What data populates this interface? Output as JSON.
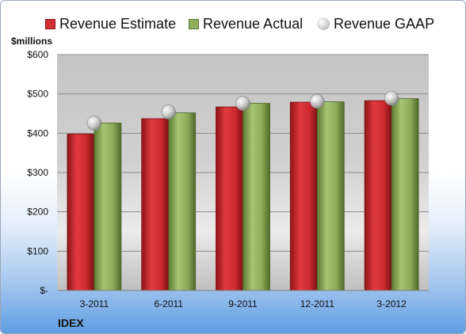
{
  "chart_data": {
    "type": "bar",
    "categories": [
      "3-2011",
      "6-2011",
      "9-2011",
      "12-2011",
      "3-2012"
    ],
    "series": [
      {
        "name": "Revenue Estimate",
        "values": [
          398,
          437,
          467,
          479,
          483
        ],
        "color": "#d12f33"
      },
      {
        "name": "Revenue Actual",
        "values": [
          426,
          452,
          476,
          480,
          488
        ],
        "color": "#8fb05a"
      },
      {
        "name": "Revenue GAAP",
        "values": [
          426,
          454,
          476,
          481,
          489
        ],
        "marker": "circle",
        "color": "#c8c8c8"
      }
    ],
    "ylabel": "$millions",
    "ylim": [
      0,
      600
    ],
    "yticks": [
      0,
      100,
      200,
      300,
      400,
      500,
      600
    ],
    "ytick_labels": [
      "$-",
      "$100",
      "$200",
      "$300",
      "$400",
      "$500",
      "$600"
    ],
    "grid": true,
    "legend_position": "top"
  },
  "footer": {
    "company": "IDEX"
  }
}
